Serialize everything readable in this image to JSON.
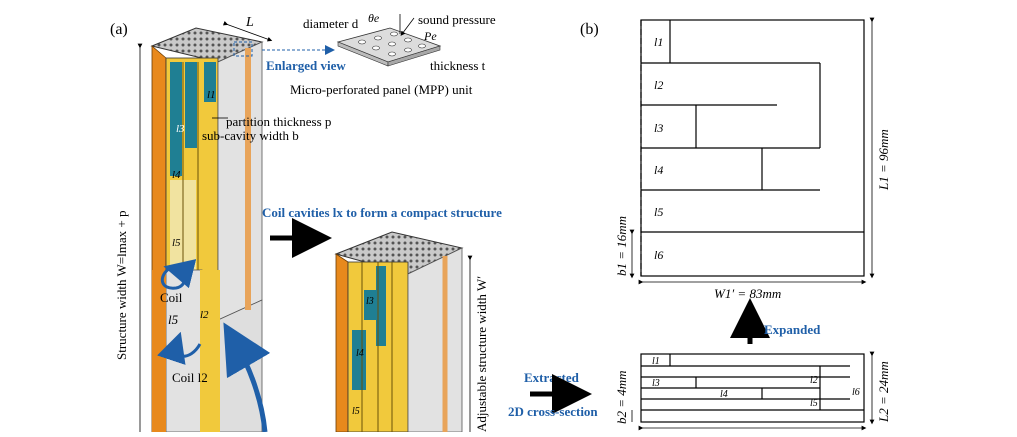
{
  "panel_a": {
    "label": "(a)",
    "dim_L": "L",
    "enlarged_view": "Enlarged view",
    "mpp_diameter": "diameter d",
    "mpp_theta": "θe",
    "mpp_sound_pressure": "sound pressure",
    "mpp_pe": "Pe",
    "mpp_thickness": "thickness t",
    "mpp_caption": "Micro-perforated panel (MPP) unit",
    "partition_thickness": "partition thickness p",
    "subcavity_width": "sub-cavity width b",
    "structure_width": "Structure width W=lmax + p",
    "coil_label_1": "Coil",
    "coil_l5": "l5",
    "coil_label_2": "Coil l2",
    "coil_heading": "Coil cavities lx to form a compact structure",
    "adjustable_width": "Adjustable structure width W′",
    "cavity_labels": [
      "l1",
      "l3",
      "l4",
      "l5",
      "l2"
    ],
    "compact_labels": [
      "l3",
      "l4",
      "l5"
    ],
    "extracted": "Extracted",
    "cross_section": "2D cross-section"
  },
  "panel_b": {
    "label": "(b)",
    "cavities": [
      "l1",
      "l2",
      "l3",
      "l4",
      "l5",
      "l6"
    ],
    "L1": "L1 = 96mm",
    "W1": "W1′ = 83mm",
    "b1": "b1 = 16mm",
    "expanded": "Expanded",
    "L2": "L2 = 24mm",
    "b2": "b2 = 4mm",
    "bottom_cavities": [
      "l1",
      "l2",
      "l3",
      "l4",
      "l5",
      "l6"
    ]
  },
  "colors": {
    "orange": "#e8891c",
    "yellow": "#f1c93c",
    "teal": "#1f7f93",
    "grey_face": "#e2e2e2",
    "blue_text": "#1f5fa8",
    "arrow_blue": "#1f5fa8"
  }
}
